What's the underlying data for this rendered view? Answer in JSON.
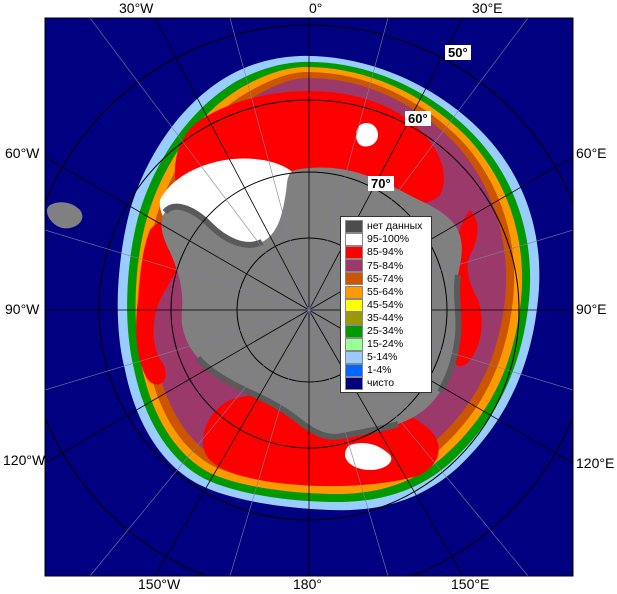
{
  "map": {
    "longitude_labels": {
      "top": [
        "30°W",
        "0°",
        "30°E"
      ],
      "left": [
        "60°W",
        "90°W",
        "120°W"
      ],
      "right": [
        "60°E",
        "90°E",
        "120°E"
      ],
      "bottom": [
        "150°W",
        "180°",
        "150°E"
      ]
    },
    "latitude_labels": [
      "50°",
      "60°",
      "70°"
    ],
    "colors": {
      "ocean": "#000080",
      "land_nodata": "#808080",
      "land_dark": "#5a5a5a",
      "ice_95_100": "#ffffff",
      "ice_85_94": "#ff0000",
      "ice_75_84": "#9b3a6a"
    }
  },
  "legend": {
    "items": [
      {
        "label": "нет данных",
        "color": "#4d4d4d"
      },
      {
        "label": "95-100%",
        "color": "#ffffff"
      },
      {
        "label": "85-94%",
        "color": "#ff0000"
      },
      {
        "label": "75-84%",
        "color": "#9b3a6a"
      },
      {
        "label": "65-74%",
        "color": "#cc5500"
      },
      {
        "label": "55-64%",
        "color": "#ff9900"
      },
      {
        "label": "45-54%",
        "color": "#ffff00"
      },
      {
        "label": "35-44%",
        "color": "#999900"
      },
      {
        "label": "25-34%",
        "color": "#009900"
      },
      {
        "label": "15-24%",
        "color": "#99ff99"
      },
      {
        "label": "5-14%",
        "color": "#99ccff"
      },
      {
        "label": "1-4%",
        "color": "#0066ff"
      },
      {
        "label": "чисто",
        "color": "#000080"
      }
    ]
  }
}
